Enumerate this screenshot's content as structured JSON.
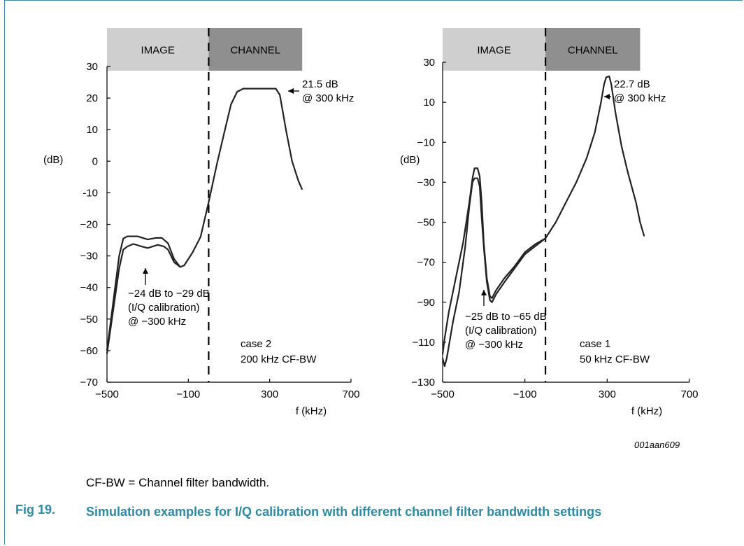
{
  "figure": {
    "label": "Fig 19.",
    "title": "Simulation examples for I/Q calibration with different channel filter bandwidth settings",
    "note": "CF-BW = Channel filter bandwidth.",
    "id": "001aan609"
  },
  "chart_data": [
    {
      "type": "line",
      "xlabel": "f (kHz)",
      "ylabel": "(dB)",
      "xlim": [
        -500,
        700
      ],
      "ylim": [
        -70,
        30
      ],
      "x_ticks": [
        -500,
        -100,
        300,
        700
      ],
      "x_tick_labels": [
        "−500",
        "−100",
        "300",
        "700"
      ],
      "y_ticks": [
        30,
        20,
        10,
        0,
        -10,
        -20,
        -30,
        -40,
        -50,
        -60,
        -70
      ],
      "y_tick_labels": [
        "30",
        "20",
        "10",
        "0",
        "-10",
        "−20",
        "−30",
        "−40",
        "−50",
        "−60",
        "−70"
      ],
      "regions": [
        {
          "label": "IMAGE",
          "from": -500,
          "to": 0,
          "color": "#cfcfcf"
        },
        {
          "label": "CHANNEL",
          "from": 0,
          "to": 460,
          "color": "#8f8f8f"
        }
      ],
      "divider_x": 0,
      "case_text": [
        "case 2",
        "200 kHz CF-BW"
      ],
      "annotations": [
        {
          "lines": [
            "21.5 dB",
            "@ 300 kHz"
          ],
          "arrow_to": [
            340,
            23
          ]
        },
        {
          "lines": [
            "−24 dB to −29 dB",
            "(I/Q calibration)",
            "@ −300 kHz"
          ],
          "arrow_to": [
            -300,
            -30
          ]
        }
      ],
      "series": [
        {
          "values": [
            [
              -500,
              -60
            ],
            [
              -480,
              -50
            ],
            [
              -460,
              -40
            ],
            [
              -440,
              -30
            ],
            [
              -420,
              -24.5
            ],
            [
              -400,
              -23.8
            ],
            [
              -350,
              -23.8
            ],
            [
              -300,
              -24.8
            ],
            [
              -260,
              -24.3
            ],
            [
              -230,
              -24.3
            ],
            [
              -200,
              -26
            ],
            [
              -170,
              -31
            ],
            [
              -140,
              -33.5
            ],
            [
              -120,
              -33
            ],
            [
              -80,
              -29
            ],
            [
              -40,
              -24
            ],
            [
              0,
              -13
            ],
            [
              40,
              -1
            ],
            [
              80,
              10
            ],
            [
              110,
              18
            ],
            [
              140,
              22
            ],
            [
              170,
              23
            ],
            [
              240,
              23
            ],
            [
              300,
              23
            ],
            [
              330,
              23
            ],
            [
              350,
              21
            ],
            [
              380,
              10
            ],
            [
              410,
              0
            ],
            [
              440,
              -6
            ],
            [
              460,
              -9
            ]
          ]
        },
        {
          "values": [
            [
              -500,
              -61
            ],
            [
              -480,
              -52
            ],
            [
              -460,
              -43
            ],
            [
              -440,
              -34
            ],
            [
              -420,
              -28
            ],
            [
              -400,
              -27
            ],
            [
              -370,
              -26.2
            ],
            [
              -330,
              -27
            ],
            [
              -300,
              -27.5
            ],
            [
              -250,
              -26.5
            ],
            [
              -220,
              -27
            ],
            [
              -200,
              -28
            ],
            [
              -170,
              -32
            ],
            [
              -140,
              -33.5
            ]
          ]
        }
      ]
    },
    {
      "type": "line",
      "xlabel": "f (kHz)",
      "ylabel": "(dB)",
      "xlim": [
        -500,
        700
      ],
      "ylim": [
        -130,
        30
      ],
      "x_ticks": [
        -500,
        -100,
        300,
        700
      ],
      "x_tick_labels": [
        "−500",
        "−100",
        "300",
        "700"
      ],
      "y_ticks": [
        30,
        10,
        -10,
        -30,
        -50,
        -70,
        -90,
        -110,
        -130
      ],
      "y_tick_labels": [
        "30",
        "10",
        "−10",
        "−30",
        "−50",
        "−70",
        "−90",
        "−110",
        "−130"
      ],
      "regions": [
        {
          "label": "IMAGE",
          "from": -500,
          "to": 0,
          "color": "#cfcfcf"
        },
        {
          "label": "CHANNEL",
          "from": 0,
          "to": 460,
          "color": "#8f8f8f"
        }
      ],
      "divider_x": 0,
      "case_text": [
        "case 1",
        "50 kHz CF-BW"
      ],
      "annotations": [
        {
          "lines": [
            "22.7 dB",
            "@ 300 kHz"
          ],
          "arrow_to": [
            315,
            21
          ]
        },
        {
          "lines": [
            "−25 dB to −65 dB",
            "(I/Q calibration)",
            "@ −300 kHz"
          ],
          "arrow_to": [
            -325,
            -85
          ]
        }
      ],
      "series": [
        {
          "values": [
            [
              -500,
              -116
            ],
            [
              -490,
              -108
            ],
            [
              -470,
              -95
            ],
            [
              -440,
              -80
            ],
            [
              -400,
              -60
            ],
            [
              -370,
              -40
            ],
            [
              -355,
              -28
            ],
            [
              -345,
              -23
            ],
            [
              -330,
              -23
            ],
            [
              -320,
              -27
            ],
            [
              -310,
              -40
            ],
            [
              -300,
              -60
            ],
            [
              -285,
              -78
            ],
            [
              -270,
              -87
            ],
            [
              -260,
              -88
            ],
            [
              -240,
              -84
            ],
            [
              -200,
              -78
            ],
            [
              -150,
              -72
            ],
            [
              -100,
              -65
            ],
            [
              -50,
              -61
            ],
            [
              0,
              -58
            ],
            [
              50,
              -50
            ],
            [
              100,
              -40
            ],
            [
              150,
              -30
            ],
            [
              200,
              -18
            ],
            [
              240,
              -5
            ],
            [
              270,
              10
            ],
            [
              285,
              19
            ],
            [
              295,
              22.5
            ],
            [
              310,
              23
            ],
            [
              320,
              19
            ],
            [
              340,
              5
            ],
            [
              370,
              -12
            ],
            [
              400,
              -25
            ],
            [
              440,
              -40
            ],
            [
              460,
              -50
            ],
            [
              480,
              -57
            ]
          ]
        },
        {
          "values": [
            [
              -500,
              -118
            ],
            [
              -490,
              -122
            ],
            [
              -480,
              -118
            ],
            [
              -450,
              -100
            ],
            [
              -420,
              -85
            ],
            [
              -390,
              -62
            ],
            [
              -370,
              -42
            ],
            [
              -355,
              -30
            ],
            [
              -345,
              -28
            ],
            [
              -330,
              -28
            ],
            [
              -320,
              -32
            ],
            [
              -310,
              -48
            ],
            [
              -300,
              -62
            ],
            [
              -285,
              -80
            ],
            [
              -270,
              -89
            ],
            [
              -260,
              -90
            ],
            [
              -240,
              -86
            ],
            [
              -200,
              -80
            ],
            [
              -150,
              -73
            ],
            [
              -100,
              -66
            ],
            [
              -50,
              -62
            ],
            [
              0,
              -58
            ]
          ]
        }
      ]
    }
  ]
}
